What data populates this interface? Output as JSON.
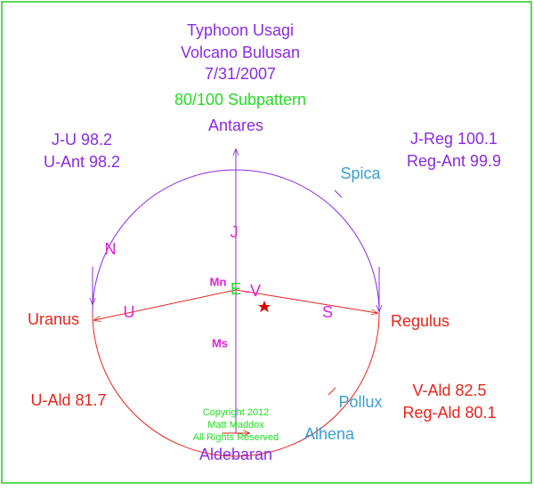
{
  "title": [
    "Typhoon Usagi",
    "Volcano Bulusan",
    "7/31/2007"
  ],
  "subtitle": "80/100 Subpattern",
  "points": {
    "top": "Antares",
    "bottom": "Aldebaran",
    "left": "Uranus",
    "right": "Regulus"
  },
  "aspects": {
    "upper_left": [
      "J-U 98.2",
      "U-Ant 98.2"
    ],
    "upper_right": [
      "J-Reg 100.1",
      "Reg-Ant 99.9"
    ],
    "lower_left": [
      "U-Ald 81.7"
    ],
    "lower_right": [
      "V-Ald 82.5",
      "Reg-Ald 80.1"
    ]
  },
  "stars": [
    "Spica",
    "Pollux",
    "Alhena"
  ],
  "markers": [
    "N",
    "J",
    "Mn",
    "E",
    "-V",
    "U",
    "S",
    "Ms"
  ],
  "copyright": [
    "Copyright 2012",
    "Matt Maddox",
    "All Rights Reserved"
  ]
}
